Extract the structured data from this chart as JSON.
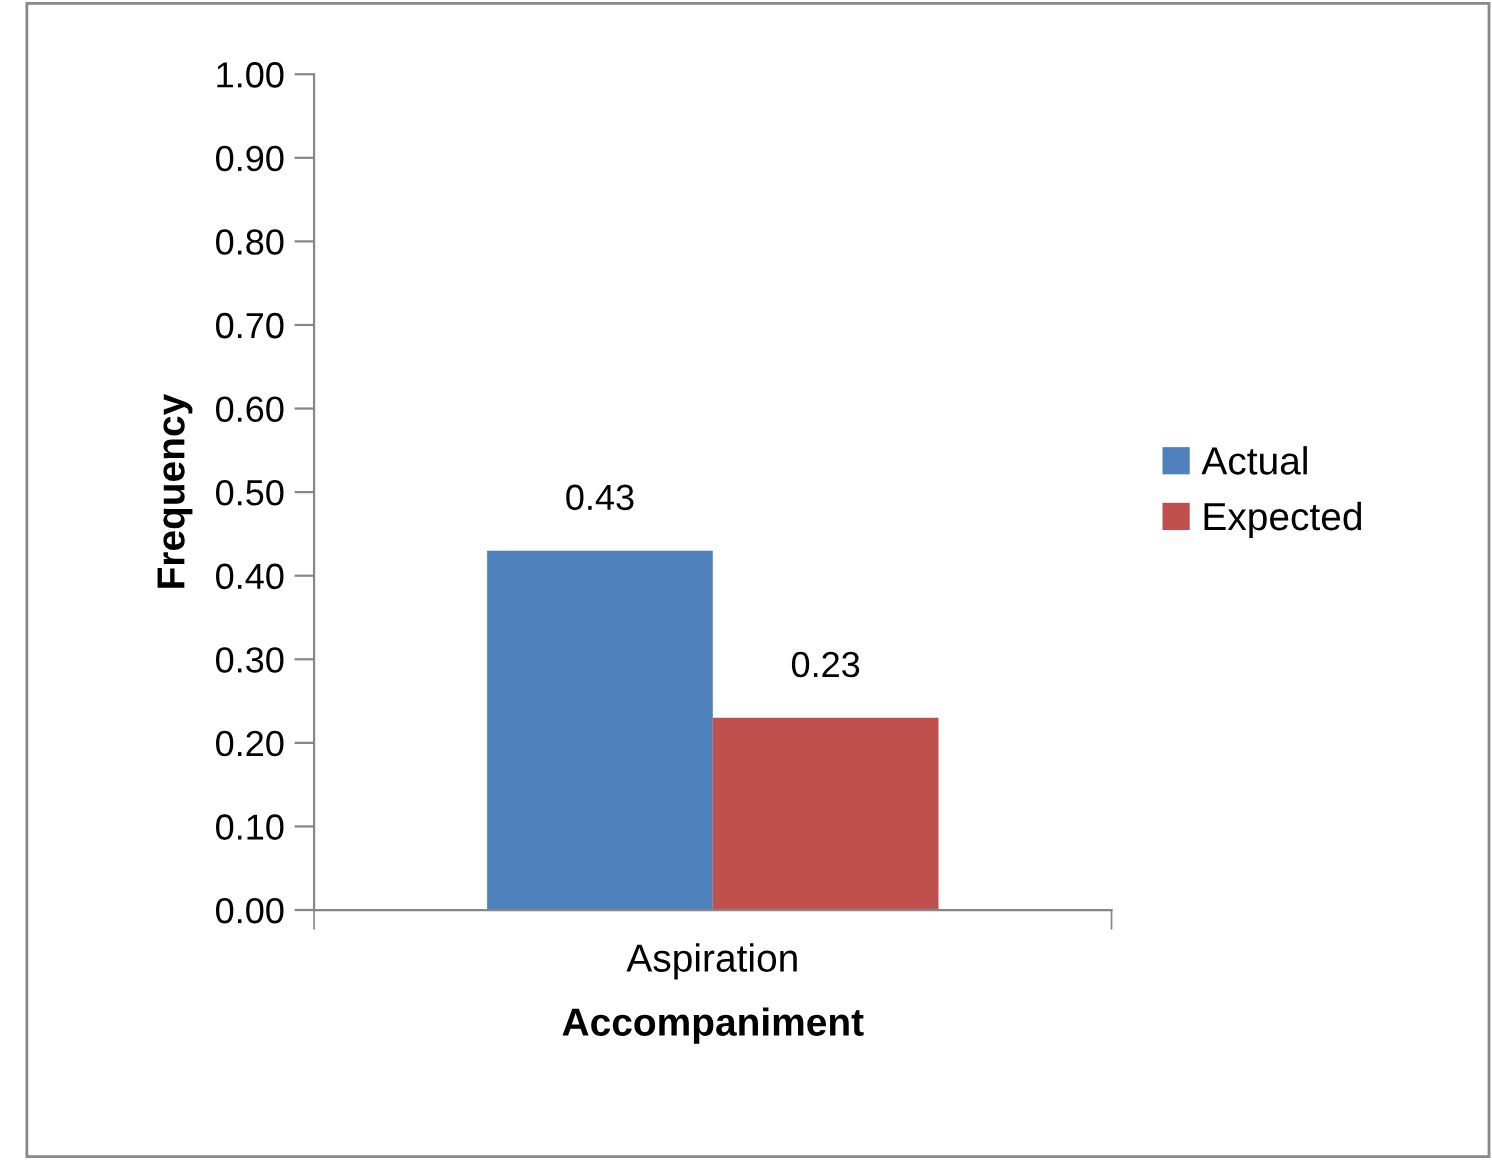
{
  "chart_data": {
    "type": "bar",
    "xlabel": "Accompaniment",
    "ylabel": "Frequency",
    "categories": [
      "Aspiration"
    ],
    "series": [
      {
        "name": "Actual",
        "color": "#4f81bd",
        "values": [
          0.43
        ]
      },
      {
        "name": "Expected",
        "color": "#c0504d",
        "values": [
          0.23
        ]
      }
    ],
    "ylim": [
      0,
      1
    ],
    "yticks": [
      {
        "value": 0,
        "label": "0.00"
      },
      {
        "value": 0.1,
        "label": "0.10"
      },
      {
        "value": 0.2,
        "label": "0.20"
      },
      {
        "value": 0.3,
        "label": "0.30"
      },
      {
        "value": 0.4,
        "label": "0.40"
      },
      {
        "value": 0.5,
        "label": "0.50"
      },
      {
        "value": 0.6,
        "label": "0.60"
      },
      {
        "value": 0.7,
        "label": "0.70"
      },
      {
        "value": 0.8,
        "label": "0.80"
      },
      {
        "value": 0.9,
        "label": "0.90"
      },
      {
        "value": 1,
        "label": "1.00"
      }
    ],
    "data_labels": true,
    "grid": false,
    "legend": "right"
  }
}
